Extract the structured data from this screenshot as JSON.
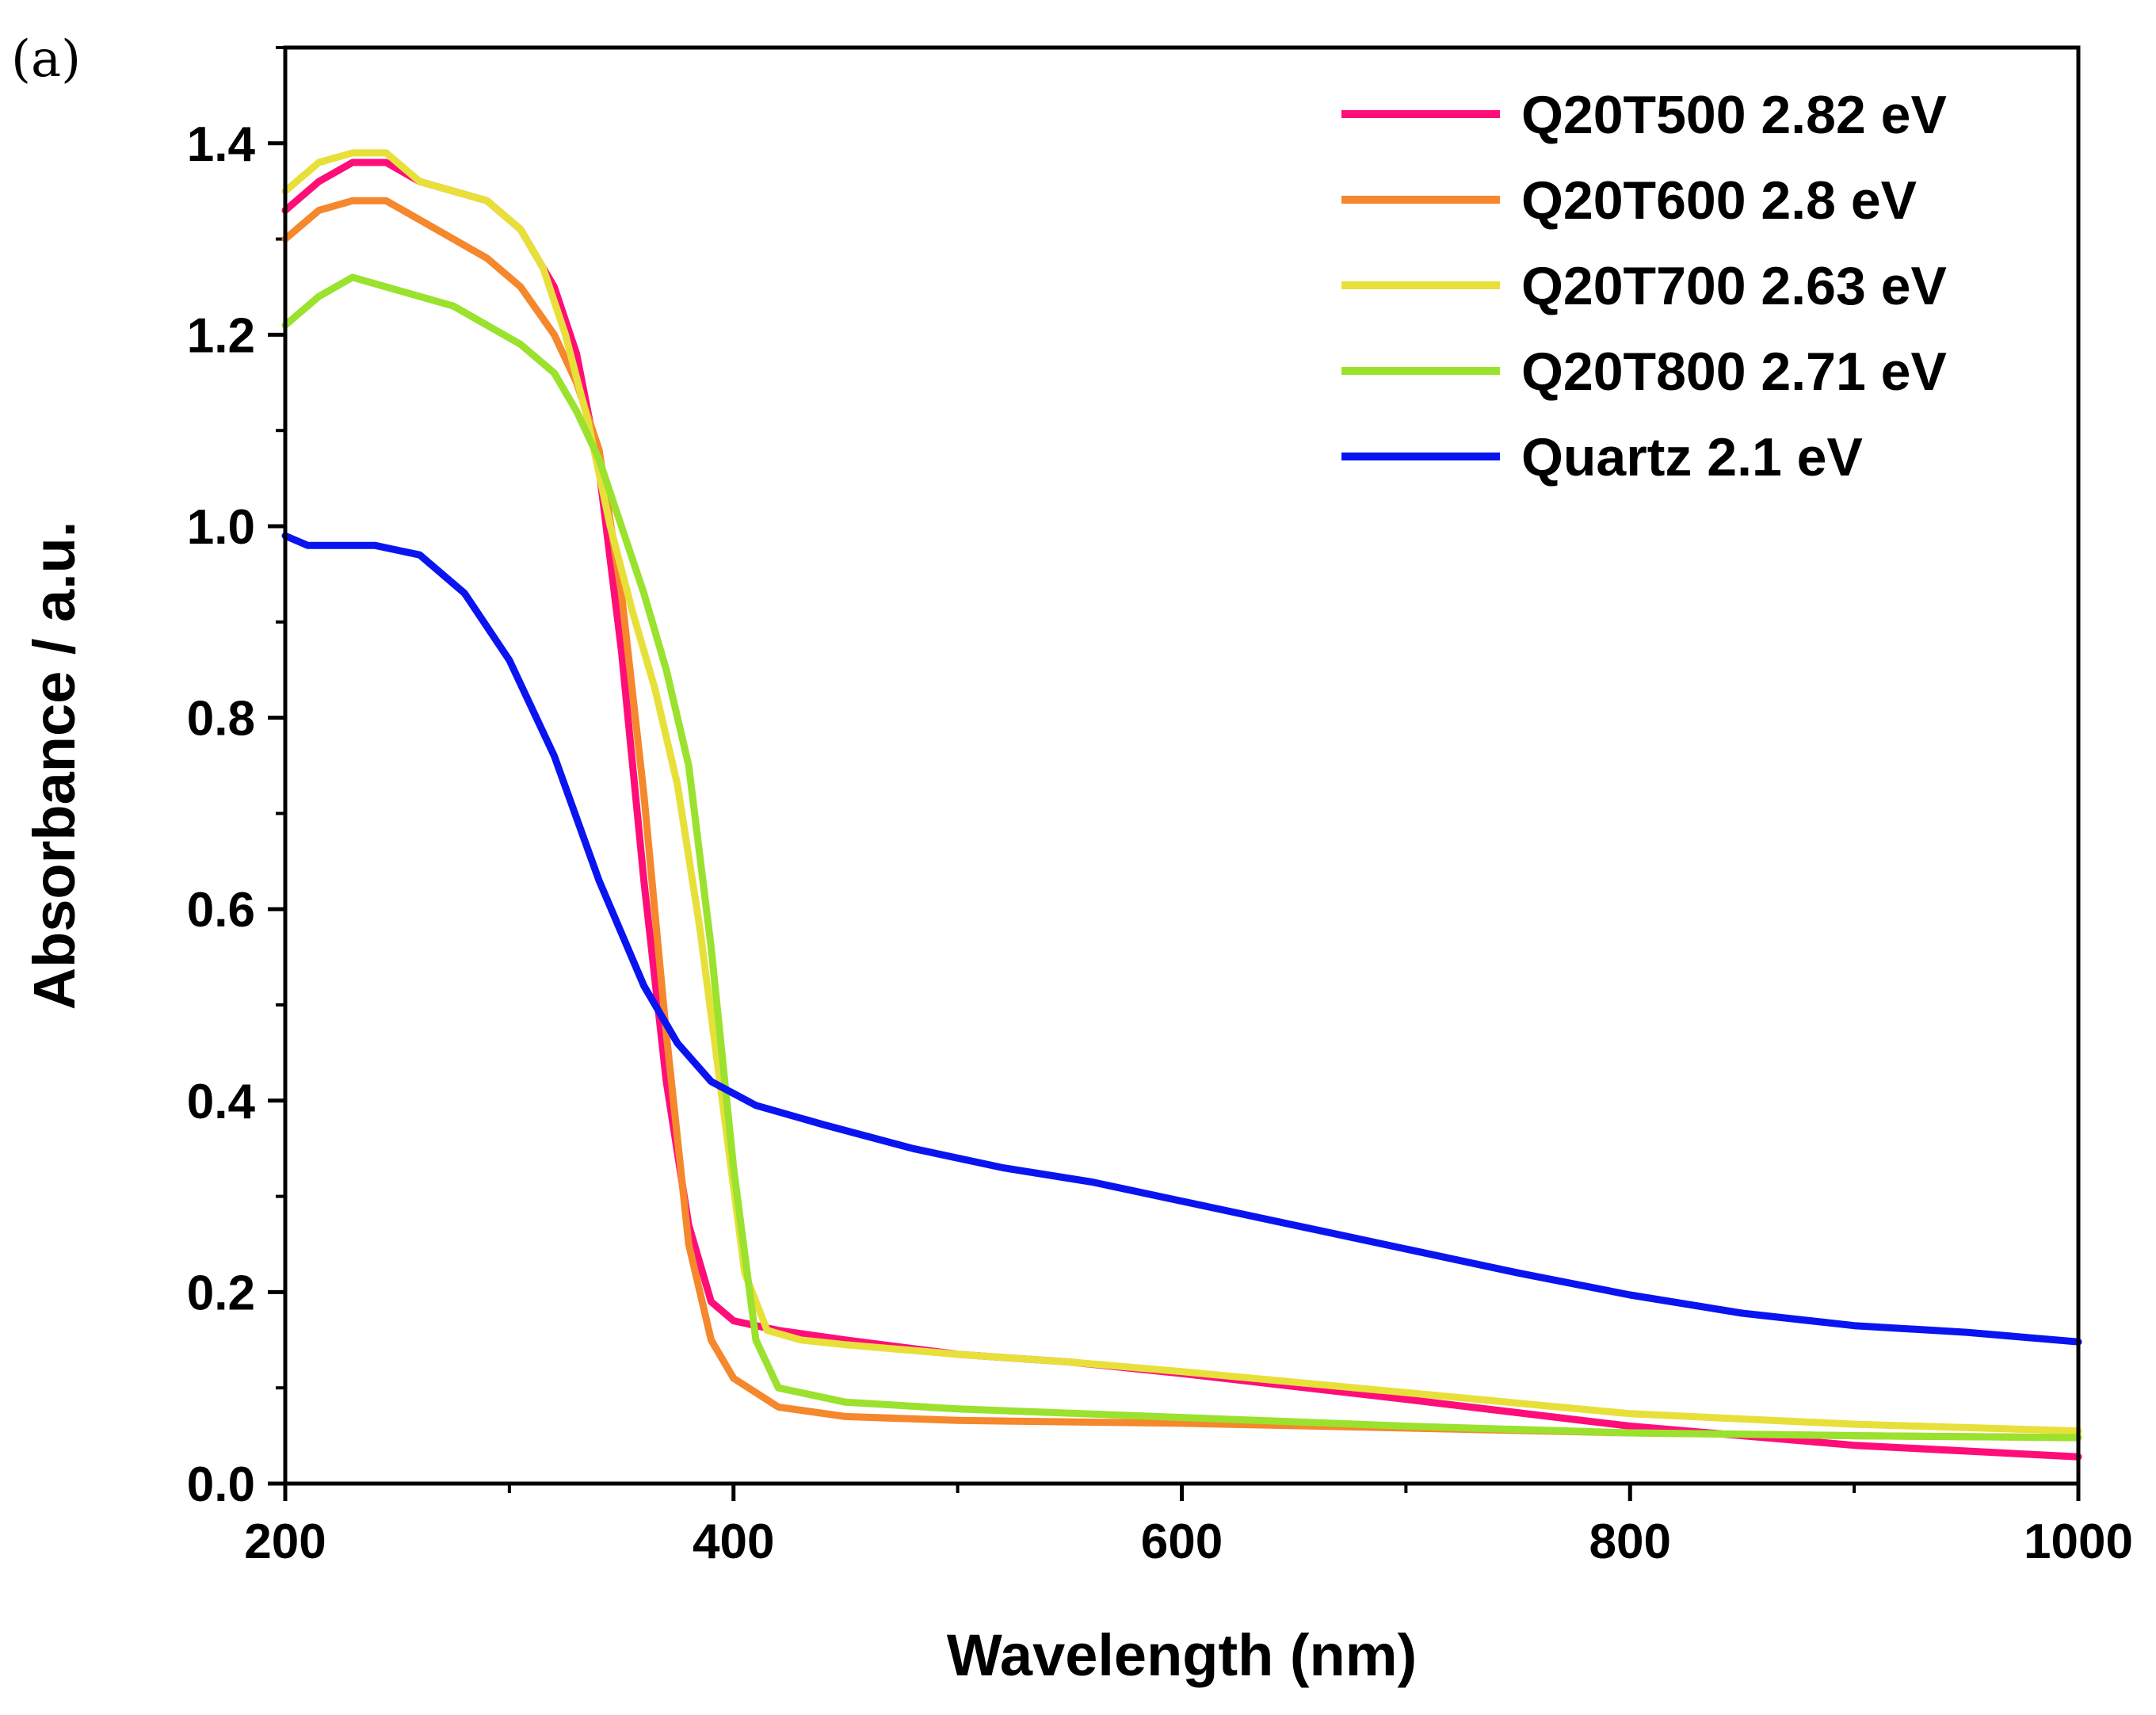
{
  "panel_label": "(a)",
  "chart_data": {
    "type": "line",
    "title": "",
    "xlabel": "Wavelength (nm)",
    "ylabel": "Absorbance / a.u.",
    "xlim": [
      200,
      1000
    ],
    "ylim": [
      0,
      1.5
    ],
    "x_ticks": [
      200,
      400,
      600,
      800,
      1000
    ],
    "x_tick_labels": [
      "200",
      "400",
      "600",
      "800",
      "1000"
    ],
    "y_ticks": [
      0,
      0.2,
      0.4,
      0.6,
      0.8,
      1.0,
      1.2,
      1.4
    ],
    "y_tick_labels": [
      "0.0",
      "0.2",
      "0.4",
      "0.6",
      "0.8",
      "1.0",
      "1.2",
      "1.4"
    ],
    "grid": false,
    "legend_position": "top-right",
    "series": [
      {
        "name": "Q20T500 2.82 eV",
        "color": "#ff0d79",
        "points": [
          [
            200,
            1.33
          ],
          [
            215,
            1.36
          ],
          [
            230,
            1.38
          ],
          [
            245,
            1.38
          ],
          [
            260,
            1.36
          ],
          [
            275,
            1.35
          ],
          [
            290,
            1.34
          ],
          [
            305,
            1.31
          ],
          [
            320,
            1.25
          ],
          [
            330,
            1.18
          ],
          [
            340,
            1.06
          ],
          [
            350,
            0.87
          ],
          [
            360,
            0.63
          ],
          [
            370,
            0.42
          ],
          [
            380,
            0.27
          ],
          [
            390,
            0.19
          ],
          [
            400,
            0.17
          ],
          [
            420,
            0.16
          ],
          [
            450,
            0.15
          ],
          [
            500,
            0.135
          ],
          [
            550,
            0.127
          ],
          [
            600,
            0.115
          ],
          [
            700,
            0.088
          ],
          [
            800,
            0.06
          ],
          [
            900,
            0.04
          ],
          [
            1000,
            0.028
          ]
        ]
      },
      {
        "name": "Q20T600 2.8 eV",
        "color": "#f5872c",
        "points": [
          [
            200,
            1.3
          ],
          [
            215,
            1.33
          ],
          [
            230,
            1.34
          ],
          [
            245,
            1.34
          ],
          [
            260,
            1.32
          ],
          [
            275,
            1.3
          ],
          [
            290,
            1.28
          ],
          [
            305,
            1.25
          ],
          [
            320,
            1.2
          ],
          [
            330,
            1.15
          ],
          [
            340,
            1.08
          ],
          [
            350,
            0.93
          ],
          [
            360,
            0.72
          ],
          [
            370,
            0.47
          ],
          [
            380,
            0.25
          ],
          [
            390,
            0.15
          ],
          [
            400,
            0.11
          ],
          [
            420,
            0.08
          ],
          [
            450,
            0.07
          ],
          [
            500,
            0.066
          ],
          [
            600,
            0.063
          ],
          [
            700,
            0.058
          ],
          [
            800,
            0.053
          ],
          [
            900,
            0.05
          ],
          [
            1000,
            0.048
          ]
        ]
      },
      {
        "name": "Q20T700 2.63 eV",
        "color": "#e8e03a",
        "points": [
          [
            200,
            1.35
          ],
          [
            215,
            1.38
          ],
          [
            230,
            1.39
          ],
          [
            245,
            1.39
          ],
          [
            260,
            1.36
          ],
          [
            275,
            1.35
          ],
          [
            290,
            1.34
          ],
          [
            305,
            1.31
          ],
          [
            315,
            1.27
          ],
          [
            325,
            1.2
          ],
          [
            335,
            1.11
          ],
          [
            345,
            1.0
          ],
          [
            355,
            0.91
          ],
          [
            365,
            0.83
          ],
          [
            375,
            0.73
          ],
          [
            385,
            0.58
          ],
          [
            395,
            0.4
          ],
          [
            405,
            0.22
          ],
          [
            415,
            0.16
          ],
          [
            430,
            0.15
          ],
          [
            450,
            0.145
          ],
          [
            500,
            0.135
          ],
          [
            550,
            0.127
          ],
          [
            600,
            0.117
          ],
          [
            700,
            0.095
          ],
          [
            800,
            0.073
          ],
          [
            900,
            0.062
          ],
          [
            1000,
            0.055
          ]
        ]
      },
      {
        "name": "Q20T800 2.71 eV",
        "color": "#9ae22d",
        "points": [
          [
            200,
            1.21
          ],
          [
            215,
            1.24
          ],
          [
            230,
            1.26
          ],
          [
            245,
            1.25
          ],
          [
            260,
            1.24
          ],
          [
            275,
            1.23
          ],
          [
            290,
            1.21
          ],
          [
            305,
            1.19
          ],
          [
            320,
            1.16
          ],
          [
            330,
            1.12
          ],
          [
            340,
            1.07
          ],
          [
            350,
            1.0
          ],
          [
            360,
            0.93
          ],
          [
            370,
            0.85
          ],
          [
            380,
            0.75
          ],
          [
            390,
            0.56
          ],
          [
            400,
            0.33
          ],
          [
            410,
            0.15
          ],
          [
            420,
            0.1
          ],
          [
            450,
            0.085
          ],
          [
            500,
            0.078
          ],
          [
            600,
            0.069
          ],
          [
            700,
            0.06
          ],
          [
            800,
            0.053
          ],
          [
            900,
            0.05
          ],
          [
            1000,
            0.048
          ]
        ]
      },
      {
        "name": "Quartz 2.1 eV",
        "color": "#0a14f0",
        "points": [
          [
            200,
            0.99
          ],
          [
            210,
            0.98
          ],
          [
            240,
            0.98
          ],
          [
            260,
            0.97
          ],
          [
            280,
            0.93
          ],
          [
            300,
            0.86
          ],
          [
            320,
            0.76
          ],
          [
            340,
            0.63
          ],
          [
            360,
            0.52
          ],
          [
            375,
            0.46
          ],
          [
            390,
            0.42
          ],
          [
            410,
            0.395
          ],
          [
            440,
            0.375
          ],
          [
            480,
            0.35
          ],
          [
            520,
            0.33
          ],
          [
            560,
            0.315
          ],
          [
            600,
            0.295
          ],
          [
            650,
            0.27
          ],
          [
            700,
            0.245
          ],
          [
            750,
            0.22
          ],
          [
            800,
            0.197
          ],
          [
            850,
            0.178
          ],
          [
            900,
            0.165
          ],
          [
            950,
            0.158
          ],
          [
            1000,
            0.148
          ]
        ]
      }
    ]
  }
}
